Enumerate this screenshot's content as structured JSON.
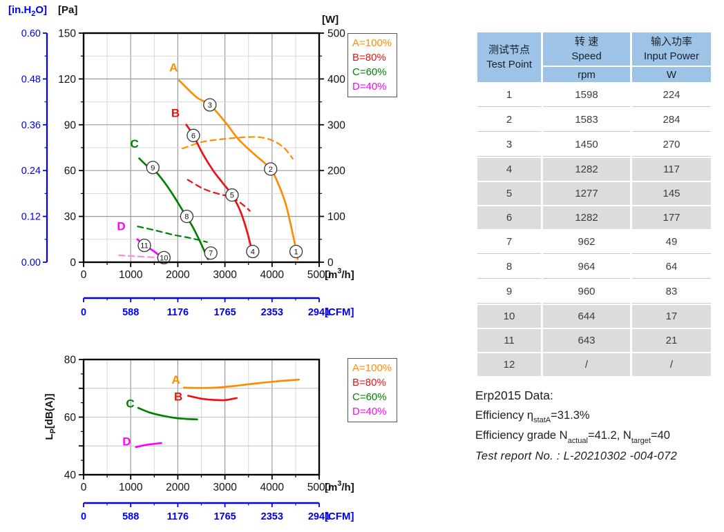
{
  "colors": {
    "accent_blue": "#0000ee",
    "orange": "#ff8c00",
    "red": "#ee1111",
    "green": "#008000",
    "magenta": "#ff00ff",
    "pink_dashed": "#ff87e3",
    "table_header_bg": "#9dc3e6",
    "table_shade_bg": "#dcdcdc"
  },
  "legend": {
    "items": [
      {
        "label": "A=100%",
        "color": "#ff8c00"
      },
      {
        "label": "B=80%",
        "color": "#ee1111"
      },
      {
        "label": "C=60%",
        "color": "#008000"
      },
      {
        "label": "D=40%",
        "color": "#ff00ff"
      }
    ]
  },
  "chart_data": [
    {
      "id": "pressure-power",
      "type": "line",
      "x": {
        "range": [
          0,
          5000
        ],
        "major": 1000,
        "minor": 500,
        "tick_labels": [
          "0",
          "1000",
          "2000",
          "3000",
          "4000",
          "5000"
        ],
        "unit_parts": [
          {
            "t": "[m"
          },
          {
            "t": "3",
            "shift": "sup"
          },
          {
            "t": "/h]"
          }
        ]
      },
      "x2": {
        "tick_labels": [
          "0",
          "588",
          "1176",
          "1765",
          "2353",
          "2941"
        ],
        "unit": "[CFM]"
      },
      "y": {
        "range": [
          0,
          150
        ],
        "major": 30,
        "minor": 15,
        "tick_values": [
          0,
          30,
          60,
          90,
          120,
          150
        ],
        "tick_labels": [
          "0",
          "30",
          "60",
          "90",
          "120",
          "150"
        ],
        "unit": "[Pa]"
      },
      "yb": {
        "tick_labels": [
          "0.00",
          "0.12",
          "0.24",
          "0.36",
          "0.48",
          "0.60"
        ],
        "unit_parts": [
          {
            "t": "[in.H"
          },
          {
            "t": "2",
            "shift": "sub"
          },
          {
            "t": "O]"
          }
        ]
      },
      "y2": {
        "range": [
          0,
          500
        ],
        "major": 100,
        "minor": 50,
        "tick_values": [
          0,
          100,
          200,
          300,
          400,
          500
        ],
        "tick_labels": [
          "0",
          "100",
          "200",
          "300",
          "400",
          "500"
        ],
        "unit": "[W]"
      },
      "series": [
        {
          "name": "A-100-pressure",
          "color": "#ff8c00",
          "axis": "y",
          "dash": false,
          "width": 2.7,
          "label": {
            "text": "A",
            "x": 1910,
            "y": 125
          },
          "points": [
            [
              2030,
              119
            ],
            [
              2400,
              108
            ],
            [
              2680,
              103
            ],
            [
              3000,
              92
            ],
            [
              3300,
              80
            ],
            [
              3650,
              70
            ],
            [
              3970,
              61
            ],
            [
              4150,
              50
            ],
            [
              4300,
              37
            ],
            [
              4450,
              17
            ],
            [
              4545,
              2
            ]
          ]
        },
        {
          "name": "A-100-input-power",
          "color": "#ff8c00",
          "axis": "y2",
          "dash": true,
          "width": 2.2,
          "points": [
            [
              2100,
              248
            ],
            [
              2500,
              262
            ],
            [
              2900,
              268
            ],
            [
              3300,
              272
            ],
            [
              3700,
              273
            ],
            [
              4000,
              266
            ],
            [
              4250,
              250
            ],
            [
              4440,
              226
            ]
          ]
        },
        {
          "name": "B-80-pressure",
          "color": "#ee1111",
          "axis": "y",
          "dash": false,
          "width": 2.7,
          "label": {
            "text": "B",
            "x": 1950,
            "y": 95
          },
          "points": [
            [
              2180,
              90
            ],
            [
              2330,
              83
            ],
            [
              2530,
              71
            ],
            [
              2750,
              60
            ],
            [
              2950,
              52
            ],
            [
              3150,
              44
            ],
            [
              3320,
              34
            ],
            [
              3470,
              20
            ],
            [
              3600,
              4
            ]
          ]
        },
        {
          "name": "B-80-input-power",
          "color": "#ee1111",
          "axis": "y2",
          "dash": true,
          "width": 2.2,
          "points": [
            [
              2210,
              180
            ],
            [
              2550,
              160
            ],
            [
              2900,
              148
            ],
            [
              3150,
              142
            ],
            [
              3400,
              124
            ],
            [
              3530,
              112
            ]
          ]
        },
        {
          "name": "C-60-pressure",
          "color": "#008000",
          "axis": "y",
          "dash": false,
          "width": 2.7,
          "label": {
            "text": "C",
            "x": 1080,
            "y": 75
          },
          "points": [
            [
              1180,
              68
            ],
            [
              1350,
              63
            ],
            [
              1480,
              61
            ],
            [
              1700,
              53
            ],
            [
              1900,
              44
            ],
            [
              2100,
              34
            ],
            [
              2300,
              24
            ],
            [
              2480,
              13
            ],
            [
              2640,
              2
            ]
          ]
        },
        {
          "name": "C-60-input-power",
          "color": "#008000",
          "axis": "y2",
          "dash": true,
          "width": 2.2,
          "points": [
            [
              1150,
              78
            ],
            [
              1500,
              70
            ],
            [
              1900,
              60
            ],
            [
              2300,
              52
            ],
            [
              2620,
              44
            ]
          ]
        },
        {
          "name": "D-40-pressure",
          "color": "#ff00ff",
          "axis": "y",
          "dash": false,
          "width": 2.7,
          "label": {
            "text": "D",
            "x": 800,
            "y": 21
          },
          "points": [
            [
              1140,
              15
            ],
            [
              1300,
              11
            ],
            [
              1500,
              7
            ],
            [
              1700,
              2
            ],
            [
              1780,
              0
            ]
          ]
        },
        {
          "name": "D-40-input-power",
          "color": "#ff87e3",
          "axis": "y",
          "dash": true,
          "width": 2.2,
          "points": [
            [
              750,
              4.5
            ],
            [
              1150,
              3.8
            ],
            [
              1620,
              3
            ]
          ]
        }
      ],
      "markers": [
        {
          "n": "1",
          "x": 4510,
          "y": 7
        },
        {
          "n": "2",
          "x": 3970,
          "y": 61
        },
        {
          "n": "3",
          "x": 2680,
          "y": 103
        },
        {
          "n": "4",
          "x": 3590,
          "y": 7
        },
        {
          "n": "5",
          "x": 3150,
          "y": 44
        },
        {
          "n": "6",
          "x": 2330,
          "y": 83
        },
        {
          "n": "7",
          "x": 2700,
          "y": 6
        },
        {
          "n": "8",
          "x": 2190,
          "y": 30
        },
        {
          "n": "9",
          "x": 1470,
          "y": 62
        },
        {
          "n": "10",
          "x": 1705,
          "y": 3
        },
        {
          "n": "11",
          "x": 1290,
          "y": 11
        }
      ]
    },
    {
      "id": "noise",
      "type": "line",
      "x": {
        "range": [
          0,
          5000
        ],
        "major": 1000,
        "minor": 500,
        "tick_labels": [
          "0",
          "1000",
          "2000",
          "3000",
          "4000",
          "5000"
        ],
        "unit_parts": [
          {
            "t": "[m"
          },
          {
            "t": "3",
            "shift": "sup"
          },
          {
            "t": "/h]"
          }
        ]
      },
      "x2": {
        "tick_labels": [
          "0",
          "588",
          "1176",
          "1765",
          "2353",
          "2941"
        ],
        "unit": "[CFM]"
      },
      "y": {
        "range": [
          40,
          80
        ],
        "major": 10,
        "minor": 5,
        "tick_values": [
          40,
          60,
          80
        ],
        "tick_labels": [
          "40",
          "60",
          "80"
        ],
        "grid": [
          50,
          60,
          70
        ],
        "unit_parts": [
          {
            "t": "L"
          },
          {
            "t": "P",
            "shift": "sub"
          },
          {
            "t": "[dB(A)]"
          }
        ]
      },
      "series": [
        {
          "name": "A-100-noise",
          "color": "#ff8c00",
          "axis": "y",
          "dash": false,
          "width": 2.7,
          "label": {
            "text": "A",
            "x": 1960,
            "y": 71.6
          },
          "points": [
            [
              2130,
              70.2
            ],
            [
              2500,
              70.1
            ],
            [
              2800,
              70.2
            ],
            [
              3200,
              70.8
            ],
            [
              3600,
              71.6
            ],
            [
              4100,
              72.4
            ],
            [
              4570,
              73.0
            ]
          ]
        },
        {
          "name": "B-80-noise",
          "color": "#ee1111",
          "axis": "y",
          "dash": false,
          "width": 2.7,
          "label": {
            "text": "B",
            "x": 2010,
            "y": 65.7
          },
          "points": [
            [
              2220,
              67.4
            ],
            [
              2500,
              66.4
            ],
            [
              2750,
              66.0
            ],
            [
              3000,
              65.9
            ],
            [
              3250,
              66.6
            ]
          ]
        },
        {
          "name": "C-60-noise",
          "color": "#008000",
          "axis": "y",
          "dash": false,
          "width": 2.7,
          "label": {
            "text": "C",
            "x": 990,
            "y": 63.4
          },
          "points": [
            [
              1160,
              63.2
            ],
            [
              1400,
              61.6
            ],
            [
              1700,
              60.4
            ],
            [
              2000,
              59.6
            ],
            [
              2250,
              59.3
            ],
            [
              2410,
              59.2
            ]
          ]
        },
        {
          "name": "D-40-noise",
          "color": "#ff00ff",
          "axis": "y",
          "dash": false,
          "width": 2.7,
          "label": {
            "text": "D",
            "x": 915,
            "y": 50.2
          },
          "points": [
            [
              1110,
              49.6
            ],
            [
              1350,
              50.4
            ],
            [
              1650,
              51.0
            ]
          ]
        }
      ],
      "markers": []
    }
  ],
  "table": {
    "header": {
      "col1_cn": "测试节点",
      "col1_en": "Test Point",
      "col2_cn": "转 速",
      "col2_en": "Speed",
      "col2_unit": "rpm",
      "col3_cn": "输入功率",
      "col3_en": "Input Power",
      "col3_unit": "W"
    },
    "rows": [
      [
        "1",
        "1598",
        "224"
      ],
      [
        "2",
        "1583",
        "284"
      ],
      [
        "3",
        "1450",
        "270"
      ],
      [
        "4",
        "1282",
        "117"
      ],
      [
        "5",
        "1277",
        "145"
      ],
      [
        "6",
        "1282",
        "177"
      ],
      [
        "7",
        "962",
        "49"
      ],
      [
        "8",
        "964",
        "64"
      ],
      [
        "9",
        "960",
        "83"
      ],
      [
        "10",
        "644",
        "17"
      ],
      [
        "11",
        "643",
        "21"
      ],
      [
        "12",
        "/",
        "/"
      ]
    ],
    "shaded_rows": [
      3,
      4,
      5,
      9,
      10,
      11
    ]
  },
  "erp": {
    "title": "Erp2015  Data:",
    "line2_pre": "Efficiency η",
    "line2_sub": "statA",
    "line2_post": "=31.3%",
    "line3_pre": "Efficiency grade N",
    "line3_sub1": "actual",
    "line3_mid": "=41.2, N",
    "line3_sub2": "target",
    "line3_post": "=40",
    "report": "Test report No.  : L-20210302 -004-072"
  }
}
